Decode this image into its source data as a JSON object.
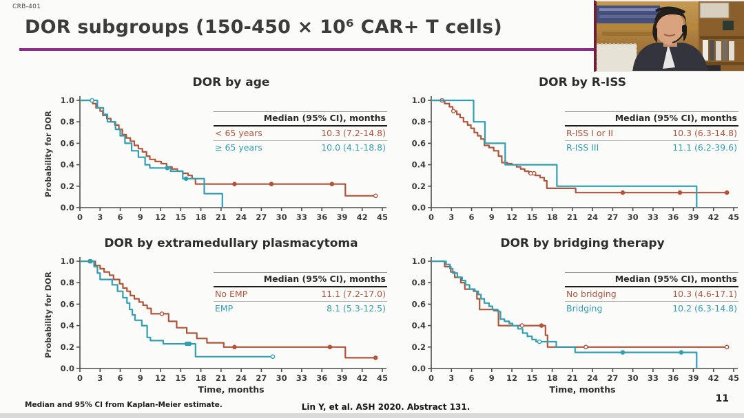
{
  "slide": {
    "project_label": "CRB-401",
    "title": "DOR subgroups (150-450 × 10⁶ CAR+ T cells)",
    "footnote": "Median and 95% CI from Kaplan-Meier estimate.",
    "source": "Lin Y, et al. ASH 2020. Abstract 131.",
    "page_number": "11"
  },
  "colors": {
    "series_a": "#b1543a",
    "series_b": "#2f9fb3",
    "title_underline": "#8d2a8d"
  },
  "chart_data": [
    {
      "id": "dor-by-age",
      "type": "line",
      "km": true,
      "title": "DOR by age",
      "ylabel": "Probability for DOR",
      "xlabel": null,
      "x_max": 45,
      "x_tick_step": 3,
      "y_ticks": [
        1.0,
        0.8,
        0.6,
        0.4,
        0.2,
        0.0
      ],
      "table_header": "Median (95% CI), months",
      "rows": [
        {
          "label": "< 65 years",
          "value": "10.3 (7.2-14.8)"
        },
        {
          "label": "≥ 65 years",
          "value": "10.0 (4.1-18.8)"
        }
      ],
      "series": [
        {
          "name": "< 65 years",
          "color": "series_a",
          "points": [
            [
              0,
              1.0
            ],
            [
              1.9,
              0.97
            ],
            [
              2.4,
              0.93
            ],
            [
              3.0,
              0.9
            ],
            [
              3.4,
              0.86
            ],
            [
              4.0,
              0.83
            ],
            [
              4.6,
              0.8
            ],
            [
              5.2,
              0.77
            ],
            [
              5.8,
              0.73
            ],
            [
              6.3,
              0.68
            ],
            [
              6.9,
              0.65
            ],
            [
              7.5,
              0.62
            ],
            [
              8.1,
              0.58
            ],
            [
              8.7,
              0.55
            ],
            [
              9.3,
              0.52
            ],
            [
              9.9,
              0.48
            ],
            [
              10.4,
              0.45
            ],
            [
              11.2,
              0.43
            ],
            [
              12.1,
              0.41
            ],
            [
              12.9,
              0.38
            ],
            [
              13.7,
              0.36
            ],
            [
              14.5,
              0.34
            ],
            [
              15.3,
              0.32
            ],
            [
              16.1,
              0.3
            ],
            [
              16.7,
              0.27
            ],
            [
              17.2,
              0.22
            ],
            [
              39.5,
              0.11
            ],
            [
              44.0,
              0.11
            ]
          ],
          "censors": [
            {
              "x": 23,
              "y": 0.22
            },
            {
              "x": 28.5,
              "y": 0.22
            },
            {
              "x": 37.5,
              "y": 0.22
            },
            {
              "x": 44,
              "y": 0.11,
              "open": true
            }
          ]
        },
        {
          "name": "≥ 65 years",
          "color": "series_b",
          "points": [
            [
              0,
              1.0
            ],
            [
              2.6,
              0.93
            ],
            [
              3.5,
              0.87
            ],
            [
              4.1,
              0.8
            ],
            [
              5.3,
              0.73
            ],
            [
              6.0,
              0.67
            ],
            [
              6.7,
              0.6
            ],
            [
              7.7,
              0.53
            ],
            [
              8.7,
              0.47
            ],
            [
              9.7,
              0.4
            ],
            [
              10.4,
              0.37
            ],
            [
              13.5,
              0.34
            ],
            [
              15.3,
              0.27
            ],
            [
              18.5,
              0.13
            ],
            [
              21.2,
              0.0
            ]
          ],
          "censors": [
            {
              "x": 1.8,
              "y": 1.0,
              "open": true
            },
            {
              "x": 13.0,
              "y": 0.37
            },
            {
              "x": 15.8,
              "y": 0.27
            }
          ]
        }
      ]
    },
    {
      "id": "dor-by-r-iss",
      "type": "line",
      "km": true,
      "title": "DOR by R-ISS",
      "ylabel": null,
      "xlabel": null,
      "x_max": 45,
      "x_tick_step": 3,
      "y_ticks": [
        1.0,
        0.8,
        0.6,
        0.4,
        0.2,
        0.0
      ],
      "table_header": "Median (95% CI), months",
      "rows": [
        {
          "label": "R-ISS I or II",
          "value": "10.3 (6.3-14.8)"
        },
        {
          "label": "R-ISS III",
          "value": "11.1 (6.2-39.6)"
        }
      ],
      "series": [
        {
          "name": "R-ISS I or II",
          "color": "series_a",
          "points": [
            [
              0,
              1.0
            ],
            [
              2.0,
              0.97
            ],
            [
              2.7,
              0.94
            ],
            [
              3.2,
              0.9
            ],
            [
              3.8,
              0.87
            ],
            [
              4.3,
              0.84
            ],
            [
              4.8,
              0.8
            ],
            [
              5.4,
              0.77
            ],
            [
              5.9,
              0.74
            ],
            [
              6.4,
              0.7
            ],
            [
              6.9,
              0.67
            ],
            [
              7.4,
              0.64
            ],
            [
              7.9,
              0.58
            ],
            [
              8.6,
              0.56
            ],
            [
              9.3,
              0.53
            ],
            [
              10.0,
              0.48
            ],
            [
              10.5,
              0.42
            ],
            [
              11.3,
              0.41
            ],
            [
              12.0,
              0.4
            ],
            [
              12.7,
              0.38
            ],
            [
              13.3,
              0.36
            ],
            [
              13.9,
              0.34
            ],
            [
              14.5,
              0.32
            ],
            [
              15.5,
              0.3
            ],
            [
              16.2,
              0.28
            ],
            [
              16.8,
              0.25
            ],
            [
              17.2,
              0.18
            ],
            [
              21.5,
              0.14
            ],
            [
              44.0,
              0.14
            ]
          ],
          "censors": [
            {
              "x": 1.6,
              "y": 1.0,
              "open": true
            },
            {
              "x": 3.3,
              "y": 0.9,
              "open": true
            },
            {
              "x": 14.8,
              "y": 0.32,
              "open": true
            },
            {
              "x": 15.3,
              "y": 0.32,
              "open": true
            },
            {
              "x": 28.5,
              "y": 0.14
            },
            {
              "x": 37,
              "y": 0.14
            },
            {
              "x": 44,
              "y": 0.14
            }
          ]
        },
        {
          "name": "R-ISS III",
          "color": "series_b",
          "points": [
            [
              0,
              1.0
            ],
            [
              6.3,
              0.8
            ],
            [
              8.0,
              0.6
            ],
            [
              11.0,
              0.4
            ],
            [
              18.7,
              0.2
            ],
            [
              39.5,
              0.0
            ]
          ],
          "censors": []
        }
      ]
    },
    {
      "id": "dor-by-extramedullary-plasmacytoma",
      "type": "line",
      "km": true,
      "title": "DOR by extramedullary plasmacytoma",
      "ylabel": "Probability for DOR",
      "xlabel": "Time, months",
      "x_max": 45,
      "x_tick_step": 3,
      "y_ticks": [
        1.0,
        0.8,
        0.6,
        0.4,
        0.2,
        0.0
      ],
      "table_header": "Median (95% CI), months",
      "rows": [
        {
          "label": "No EMP",
          "value": "11.1 (7.2-17.0)"
        },
        {
          "label": "EMP",
          "value": "8.1 (5.3-12.5)"
        }
      ],
      "series": [
        {
          "name": "No EMP",
          "color": "series_a",
          "points": [
            [
              0,
              1.0
            ],
            [
              2.3,
              0.96
            ],
            [
              3.0,
              0.93
            ],
            [
              3.6,
              0.9
            ],
            [
              4.4,
              0.87
            ],
            [
              5.0,
              0.83
            ],
            [
              5.9,
              0.79
            ],
            [
              6.4,
              0.75
            ],
            [
              7.0,
              0.72
            ],
            [
              7.5,
              0.68
            ],
            [
              8.1,
              0.65
            ],
            [
              8.8,
              0.62
            ],
            [
              9.4,
              0.59
            ],
            [
              10.0,
              0.56
            ],
            [
              10.6,
              0.51
            ],
            [
              13.2,
              0.44
            ],
            [
              14.4,
              0.38
            ],
            [
              15.9,
              0.33
            ],
            [
              17.4,
              0.28
            ],
            [
              18.9,
              0.24
            ],
            [
              21.4,
              0.2
            ],
            [
              39.5,
              0.1
            ],
            [
              44.0,
              0.1
            ]
          ],
          "censors": [
            {
              "x": 1.5,
              "y": 1.0
            },
            {
              "x": 12.2,
              "y": 0.51,
              "open": true
            },
            {
              "x": 23,
              "y": 0.2
            },
            {
              "x": 37.2,
              "y": 0.2
            },
            {
              "x": 44,
              "y": 0.1
            }
          ]
        },
        {
          "name": "EMP",
          "color": "series_b",
          "points": [
            [
              0,
              1.0
            ],
            [
              2.1,
              0.95
            ],
            [
              2.6,
              0.89
            ],
            [
              3.0,
              0.83
            ],
            [
              4.8,
              0.78
            ],
            [
              5.6,
              0.72
            ],
            [
              6.4,
              0.66
            ],
            [
              7.0,
              0.61
            ],
            [
              7.4,
              0.55
            ],
            [
              7.8,
              0.5
            ],
            [
              8.2,
              0.45
            ],
            [
              9.2,
              0.4
            ],
            [
              10.0,
              0.29
            ],
            [
              10.5,
              0.26
            ],
            [
              12.4,
              0.23
            ],
            [
              17.2,
              0.11
            ],
            [
              28.7,
              0.11
            ]
          ],
          "censors": [
            {
              "x": 1.6,
              "y": 1.0
            },
            {
              "x": 15.9,
              "y": 0.23
            },
            {
              "x": 16.3,
              "y": 0.23
            },
            {
              "x": 28.7,
              "y": 0.11,
              "open": true
            }
          ]
        }
      ]
    },
    {
      "id": "dor-by-bridging-therapy",
      "type": "line",
      "km": true,
      "title": "DOR by bridging therapy",
      "ylabel": null,
      "xlabel": "Time, months",
      "x_max": 45,
      "x_tick_step": 3,
      "y_ticks": [
        1.0,
        0.8,
        0.6,
        0.4,
        0.2,
        0.0
      ],
      "table_header": "Median (95% CI), months",
      "rows": [
        {
          "label": "No bridging",
          "value": "10.3 (4.6-17.1)"
        },
        {
          "label": "Bridging",
          "value": "10.2 (6.3-14.8)"
        }
      ],
      "series": [
        {
          "name": "No bridging",
          "color": "series_a",
          "points": [
            [
              0,
              1.0
            ],
            [
              2.0,
              0.95
            ],
            [
              2.9,
              0.9
            ],
            [
              3.5,
              0.85
            ],
            [
              4.4,
              0.8
            ],
            [
              5.0,
              0.74
            ],
            [
              6.3,
              0.72
            ],
            [
              6.8,
              0.65
            ],
            [
              7.2,
              0.55
            ],
            [
              9.3,
              0.54
            ],
            [
              10.0,
              0.4
            ],
            [
              17.0,
              0.31
            ],
            [
              17.3,
              0.2
            ],
            [
              44.0,
              0.2
            ]
          ],
          "censors": [
            {
              "x": 13.5,
              "y": 0.4,
              "open": true
            },
            {
              "x": 16.4,
              "y": 0.4
            },
            {
              "x": 23,
              "y": 0.2,
              "open": true
            },
            {
              "x": 44,
              "y": 0.2,
              "open": true
            }
          ]
        },
        {
          "name": "Bridging",
          "color": "series_b",
          "points": [
            [
              0,
              1.0
            ],
            [
              2.2,
              0.97
            ],
            [
              2.8,
              0.93
            ],
            [
              3.2,
              0.89
            ],
            [
              3.9,
              0.85
            ],
            [
              4.6,
              0.82
            ],
            [
              5.1,
              0.78
            ],
            [
              5.7,
              0.74
            ],
            [
              6.5,
              0.72
            ],
            [
              7.0,
              0.69
            ],
            [
              7.4,
              0.65
            ],
            [
              7.9,
              0.61
            ],
            [
              8.6,
              0.58
            ],
            [
              9.1,
              0.55
            ],
            [
              9.9,
              0.53
            ],
            [
              10.3,
              0.46
            ],
            [
              10.9,
              0.44
            ],
            [
              11.6,
              0.42
            ],
            [
              12.1,
              0.4
            ],
            [
              12.9,
              0.37
            ],
            [
              13.6,
              0.33
            ],
            [
              14.3,
              0.3
            ],
            [
              15.0,
              0.27
            ],
            [
              15.6,
              0.25
            ],
            [
              18.6,
              0.2
            ],
            [
              21.4,
              0.15
            ],
            [
              39.5,
              0.0
            ]
          ],
          "censors": [
            {
              "x": 16.1,
              "y": 0.25,
              "open": true
            },
            {
              "x": 28.5,
              "y": 0.15
            },
            {
              "x": 37.2,
              "y": 0.15
            }
          ]
        }
      ]
    }
  ]
}
